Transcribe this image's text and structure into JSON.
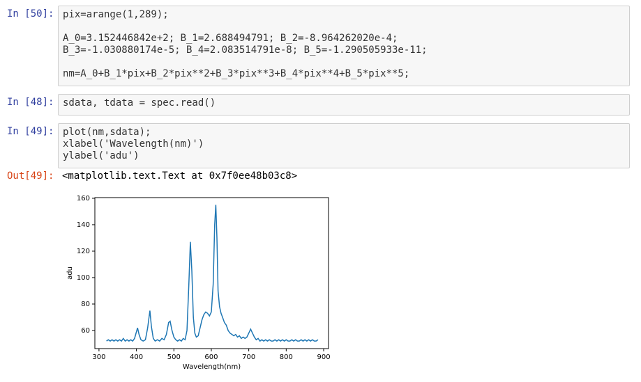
{
  "cells": [
    {
      "prompt": "In [50]:",
      "blocks": [
        [
          "pix=arange(1,289);"
        ],
        [
          "A_0=3.152446842e+2; B_1=2.688494791; B_2=-8.964262020e-4;",
          "B_3=-1.030880174e-5; B_4=2.083514791e-8; B_5=-1.290505933e-11;"
        ],
        [
          "nm=A_0+B_1*pix+B_2*pix**2+B_3*pix**3+B_4*pix**4+B_5*pix**5;"
        ]
      ]
    },
    {
      "prompt": "In [48]:",
      "blocks": [
        [
          "sdata, tdata = spec.read()"
        ]
      ]
    },
    {
      "prompt": "In [49]:",
      "blocks": [
        [
          "plot(nm,sdata);",
          "xlabel('Wavelength(nm)')",
          "ylabel('adu')"
        ]
      ]
    }
  ],
  "output": {
    "prompt": "Out[49]:",
    "text": "<matplotlib.text.Text at 0x7f0ee48b03c8>"
  },
  "chart_data": {
    "type": "line",
    "x_label": "Wavelength(nm)",
    "y_label": "adu",
    "x": [
      320,
      325,
      330,
      335,
      340,
      345,
      350,
      355,
      360,
      365,
      370,
      375,
      380,
      385,
      390,
      395,
      400,
      403,
      407,
      412,
      418,
      424,
      430,
      436,
      440,
      445,
      450,
      456,
      462,
      468,
      474,
      480,
      486,
      490,
      495,
      500,
      505,
      510,
      515,
      520,
      525,
      530,
      535,
      540,
      544,
      548,
      552,
      556,
      560,
      565,
      570,
      575,
      580,
      585,
      590,
      595,
      600,
      605,
      609,
      612,
      615,
      618,
      622,
      626,
      630,
      635,
      640,
      645,
      650,
      655,
      660,
      665,
      670,
      675,
      680,
      685,
      690,
      695,
      700,
      705,
      710,
      715,
      720,
      725,
      730,
      735,
      740,
      745,
      750,
      755,
      760,
      765,
      770,
      775,
      780,
      785,
      790,
      795,
      800,
      805,
      810,
      815,
      820,
      825,
      830,
      835,
      840,
      845,
      850,
      855,
      860,
      865,
      870,
      875,
      880,
      885
    ],
    "series": [
      {
        "name": "sdata",
        "color": "#1f77b4",
        "values": [
          52,
          53,
          52,
          53,
          52,
          53,
          52,
          53,
          52,
          54,
          52,
          53,
          52,
          53,
          52,
          54,
          59,
          62,
          57,
          53,
          52,
          53,
          62,
          75,
          63,
          54,
          52,
          53,
          52,
          54,
          53,
          57,
          66,
          67,
          60,
          55,
          53,
          52,
          53,
          52,
          54,
          53,
          60,
          95,
          127,
          105,
          70,
          58,
          55,
          56,
          62,
          68,
          72,
          74,
          73,
          71,
          74,
          95,
          140,
          155,
          130,
          90,
          78,
          73,
          70,
          66,
          64,
          60,
          58,
          57,
          56,
          57,
          55,
          56,
          54,
          55,
          54,
          55,
          58,
          61,
          58,
          55,
          53,
          54,
          52,
          53,
          52,
          53,
          52,
          53,
          52,
          52,
          53,
          52,
          53,
          52,
          53,
          52,
          53,
          52,
          52,
          53,
          52,
          53,
          52,
          52,
          53,
          52,
          53,
          52,
          53,
          52,
          53,
          52,
          52,
          53
        ]
      }
    ],
    "xlim": [
      289,
      913
    ],
    "ylim": [
      46.3,
      160.5
    ],
    "xticks": [
      300,
      400,
      500,
      600,
      700,
      800,
      900
    ],
    "yticks": [
      60,
      80,
      100,
      120,
      140,
      160
    ]
  }
}
